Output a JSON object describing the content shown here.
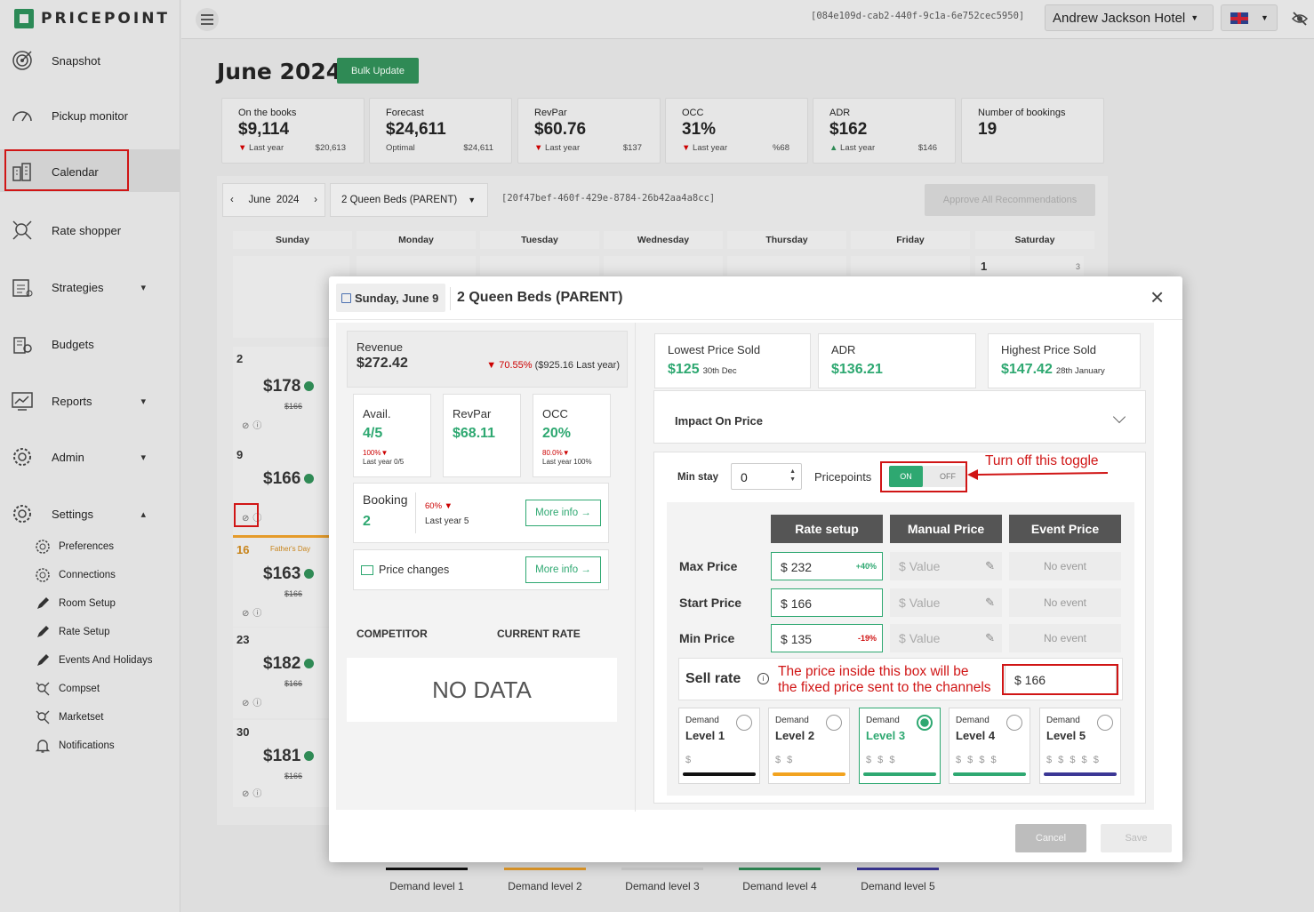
{
  "brand": {
    "name": "PRICEPOINT",
    "color": "#2c8a57"
  },
  "sidebar": {
    "items": [
      {
        "label": "Snapshot",
        "icon": "target-icon"
      },
      {
        "label": "Pickup monitor",
        "icon": "gauge-icon"
      },
      {
        "label": "Calendar",
        "icon": "calendar-building-icon",
        "active": true
      },
      {
        "label": "Rate shopper",
        "icon": "rate-shopper-icon"
      },
      {
        "label": "Strategies",
        "icon": "strategies-icon",
        "expandable": true
      },
      {
        "label": "Budgets",
        "icon": "budgets-icon"
      },
      {
        "label": "Reports",
        "icon": "reports-icon",
        "expandable": true
      },
      {
        "label": "Admin",
        "icon": "gear-icon",
        "expandable": true
      },
      {
        "label": "Settings",
        "icon": "gear-icon",
        "expanded": true
      }
    ],
    "settings_sub": [
      {
        "label": "Preferences",
        "icon": "gear-icon"
      },
      {
        "label": "Connections",
        "icon": "gear-icon"
      },
      {
        "label": "Room Setup",
        "icon": "pencil-icon"
      },
      {
        "label": "Rate Setup",
        "icon": "pencil-icon"
      },
      {
        "label": "Events And Holidays",
        "icon": "pencil-icon"
      },
      {
        "label": "Compset",
        "icon": "compset-icon"
      },
      {
        "label": "Marketset",
        "icon": "marketset-icon"
      },
      {
        "label": "Notifications",
        "icon": "bell-icon"
      }
    ]
  },
  "topbar": {
    "hotel_id": "[084e109d-cab2-440f-9c1a-6e752cec5950]",
    "hotel": "Andrew Jackson Hotel",
    "language_flag": "uk-flag-icon"
  },
  "page": {
    "title": "June 2024",
    "bulk_update": "Bulk Update"
  },
  "kpis": [
    {
      "label": "On the books",
      "value": "$9,114",
      "sub_label": "Last year",
      "sub_value": "$20,613",
      "trend": "down"
    },
    {
      "label": "Forecast",
      "value": "$24,611",
      "sub_label": "Optimal",
      "sub_value": "$24,611",
      "trend": "none"
    },
    {
      "label": "RevPar",
      "value": "$60.76",
      "sub_label": "Last year",
      "sub_value": "$137",
      "trend": "down"
    },
    {
      "label": "OCC",
      "value": "31%",
      "sub_label": "Last year",
      "sub_value": "%68",
      "trend": "down"
    },
    {
      "label": "ADR",
      "value": "$162",
      "sub_label": "Last year",
      "sub_value": "$146",
      "trend": "up"
    },
    {
      "label": "Number of bookings",
      "value": "19",
      "sub_label": "",
      "sub_value": "",
      "trend": "none"
    }
  ],
  "calendar": {
    "month": "June",
    "year": "2024",
    "room": "2 Queen Beds (PARENT)",
    "room_id": "[20f47bef-460f-429e-8784-26b42aa4a8cc]",
    "approve_all": "Approve All Recommendations",
    "days": [
      "Sunday",
      "Monday",
      "Tuesday",
      "Wednesday",
      "Thursday",
      "Friday",
      "Saturday"
    ],
    "saturday_first": {
      "day": "1",
      "avail": "3"
    },
    "sunday_cells": [
      {
        "day": "2",
        "price": "$178",
        "old": "$166"
      },
      {
        "day": "9",
        "price": "$166",
        "old": ""
      },
      {
        "day": "16",
        "price": "$163",
        "old": "$166",
        "event": "Father's Day"
      },
      {
        "day": "23",
        "price": "$182",
        "old": "$166"
      },
      {
        "day": "30",
        "price": "$181",
        "old": "$166"
      }
    ]
  },
  "legend": [
    "Demand level 1",
    "Demand level 2",
    "Demand level 3",
    "Demand level 4",
    "Demand level 5"
  ],
  "modal": {
    "date": "Sunday, June 9",
    "room": "2 Queen Beds (PARENT)",
    "revenue": {
      "label": "Revenue",
      "value": "$272.42",
      "change": "70.55%",
      "last_year": "($925.16 Last year)"
    },
    "avail": {
      "label": "Avail.",
      "value": "4/5",
      "pct": "100%",
      "ly": "Last year 0/5"
    },
    "revpar": {
      "label": "RevPar",
      "value": "$68.11"
    },
    "occ": {
      "label": "OCC",
      "value": "20%",
      "pct": "80.0%",
      "ly": "Last year 100%"
    },
    "booking": {
      "label": "Booking",
      "value": "2",
      "pct": "60%",
      "ly": "Last year 5",
      "more": "More info →"
    },
    "price_changes": {
      "label": "Price changes",
      "more": "More info →"
    },
    "competitor": {
      "col1": "COMPETITOR",
      "col2": "CURRENT RATE",
      "empty": "NO DATA"
    },
    "stats": [
      {
        "label": "Lowest Price Sold",
        "value": "$125",
        "note": "30th Dec"
      },
      {
        "label": "ADR",
        "value": "$136.21",
        "note": ""
      },
      {
        "label": "Highest Price Sold",
        "value": "$147.42",
        "note": "28th January"
      }
    ],
    "impact": "Impact On Price",
    "min_stay": {
      "label": "Min stay",
      "value": "0"
    },
    "pricepoints": {
      "label": "Pricepoints",
      "on": "ON",
      "off": "OFF"
    },
    "columns": [
      "Rate setup",
      "Manual Price",
      "Event Price"
    ],
    "rows": [
      {
        "label": "Max Price",
        "value": "232",
        "pct": "+40%",
        "pct_color": "#2ea871"
      },
      {
        "label": "Start Price",
        "value": "166",
        "pct": "",
        "pct_color": ""
      },
      {
        "label": "Min Price",
        "value": "135",
        "pct": "-19%",
        "pct_color": "#d01515"
      }
    ],
    "currency": "$",
    "value_placeholder": "Value",
    "no_event": "No event",
    "sell_rate": {
      "label": "Sell rate",
      "value": "$ 166"
    },
    "demand": [
      {
        "top": "Demand",
        "level": "Level 1",
        "dollars": "$",
        "color": "#111111",
        "selected": false
      },
      {
        "top": "Demand",
        "level": "Level 2",
        "dollars": "$ $",
        "color": "#f2a31f",
        "selected": false
      },
      {
        "top": "Demand",
        "level": "Level 3",
        "dollars": "$ $ $",
        "color": "#2ea871",
        "selected": true
      },
      {
        "top": "Demand",
        "level": "Level 4",
        "dollars": "$ $ $ $",
        "color": "#2ea871",
        "selected": false
      },
      {
        "top": "Demand",
        "level": "Level 5",
        "dollars": "$ $ $ $ $",
        "color": "#3b3795",
        "selected": false
      }
    ],
    "cancel": "Cancel",
    "save": "Save"
  },
  "annotations": {
    "toggle": "Turn off this toggle",
    "sell_line1": "The price inside this box will be",
    "sell_line2": "the fixed price sent to the channels",
    "color": "#d01515"
  }
}
